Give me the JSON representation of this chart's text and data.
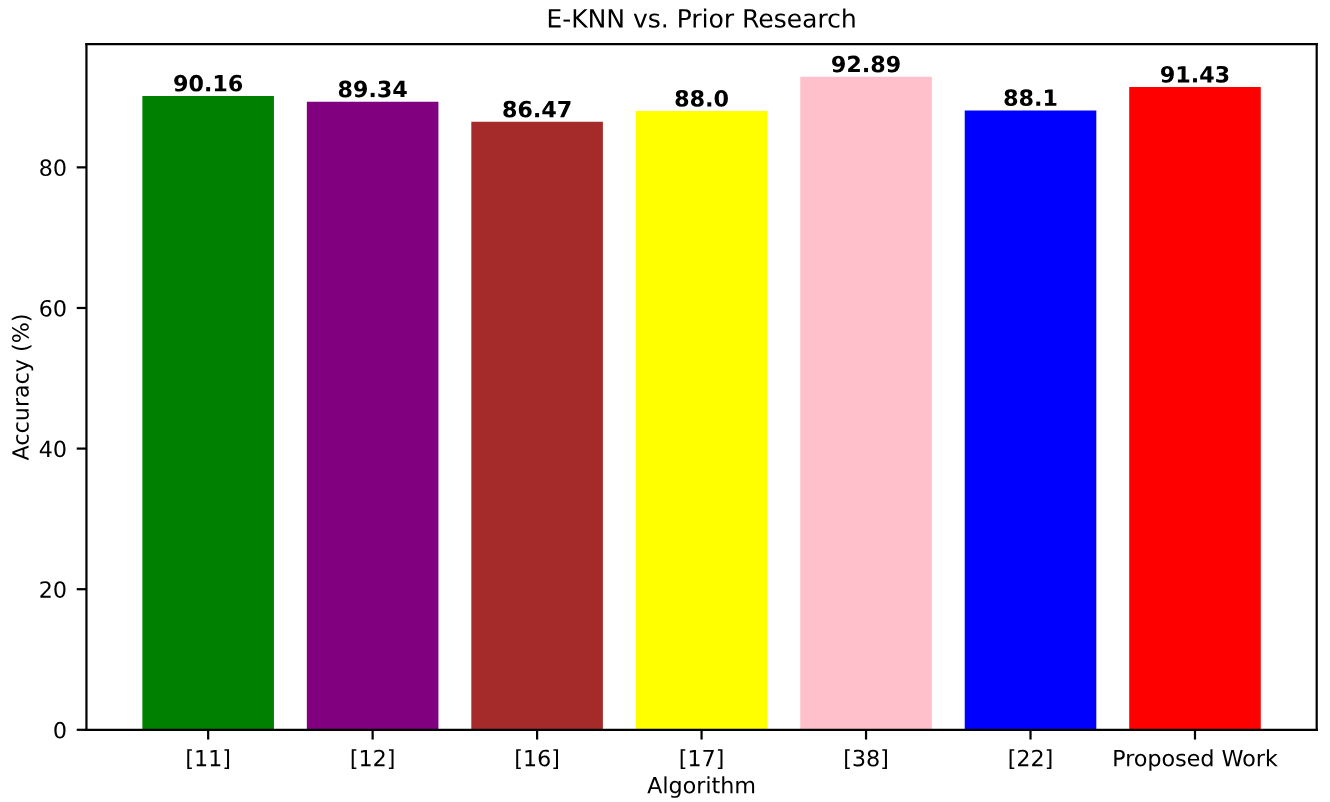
{
  "chart_data": {
    "type": "bar",
    "title": "E-KNN vs. Prior Research",
    "xlabel": "Algorithm",
    "ylabel": "Accuracy (%)",
    "categories": [
      "[11]",
      "[12]",
      "[16]",
      "[17]",
      "[38]",
      "[22]",
      "Proposed Work"
    ],
    "values": [
      90.16,
      89.34,
      86.47,
      88.0,
      92.89,
      88.1,
      91.43
    ],
    "value_labels": [
      "90.16",
      "89.34",
      "86.47",
      "88.0",
      "92.89",
      "88.1",
      "91.43"
    ],
    "colors": [
      "#008000",
      "#800080",
      "#a52a2a",
      "#ffff00",
      "#ffc0cb",
      "#0000ff",
      "#ff0000"
    ],
    "ylim": [
      0,
      97.53
    ],
    "yticks": [
      0,
      20,
      40,
      60,
      80
    ],
    "grid": false,
    "legend": false
  }
}
